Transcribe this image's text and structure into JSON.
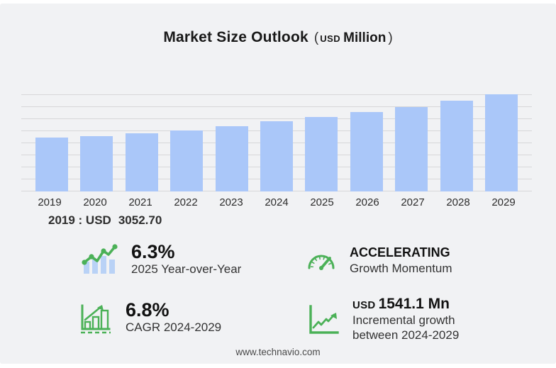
{
  "title": {
    "main": "Market Size Outlook",
    "paren_open": "(",
    "currency": "USD",
    "unit": "Million",
    "paren_close": ")"
  },
  "chart_data": {
    "type": "bar",
    "title": "Market Size Outlook (USD Million)",
    "unit": "USD Million",
    "categories": [
      "2019",
      "2020",
      "2021",
      "2022",
      "2023",
      "2024",
      "2025",
      "2026",
      "2027",
      "2028",
      "2029"
    ],
    "values": [
      3052.7,
      3150,
      3290,
      3460,
      3680,
      3956.7,
      4205.9,
      4480,
      4780,
      5120,
      5497.8
    ],
    "ylim": [
      0,
      5500
    ],
    "gridlines": true,
    "legend_position": "none",
    "bar_color": "#aac7f9"
  },
  "annotation": {
    "label": "2019 : USD",
    "value": "3052.70"
  },
  "stats": {
    "yoy": {
      "value": "6.3%",
      "label": "2025 Year-over-Year"
    },
    "momentum": {
      "value": "ACCELERATING",
      "label": "Growth Momentum"
    },
    "cagr": {
      "value": "6.8%",
      "label": "CAGR 2024-2029"
    },
    "incremental": {
      "currency": "USD",
      "value": "1541.1 Mn",
      "label_line1": "Incremental growth",
      "label_line2": "between 2024-2029"
    }
  },
  "footer": {
    "url": "www.technavio.com"
  },
  "colors": {
    "background": "#f1f2f4",
    "bar": "#aac7f9",
    "gridline": "#d7d7d9",
    "icon_green": "#4bb157",
    "icon_blue": "#b9d2f6"
  }
}
